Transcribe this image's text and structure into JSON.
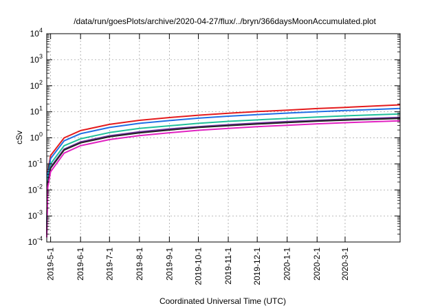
{
  "chart_data": {
    "type": "line",
    "title": "/data/run/goesPlots/archive/2020-04-27/flux/../bryn/366daysMoonAccumulated.plot",
    "xlabel": "Coordinated Universal Time (UTC)",
    "ylabel": "cSv",
    "yscale": "log",
    "ylim": [
      0.0001,
      10000
    ],
    "xlim": [
      "2019-04-27",
      "2020-04-27"
    ],
    "grid": true,
    "y_ticks": [
      {
        "base": "10",
        "exp": "-4",
        "value": 0.0001
      },
      {
        "base": "10",
        "exp": "-3",
        "value": 0.001
      },
      {
        "base": "10",
        "exp": "-2",
        "value": 0.01
      },
      {
        "base": "10",
        "exp": "-1",
        "value": 0.1
      },
      {
        "base": "10",
        "exp": "0",
        "value": 1
      },
      {
        "base": "10",
        "exp": "1",
        "value": 10
      },
      {
        "base": "10",
        "exp": "2",
        "value": 100
      },
      {
        "base": "10",
        "exp": "3",
        "value": 1000
      },
      {
        "base": "10",
        "exp": "4",
        "value": 10000
      }
    ],
    "x_ticks": [
      {
        "label": "2019-5-1",
        "date": "2019-05-01"
      },
      {
        "label": "2019-6-1",
        "date": "2019-06-01"
      },
      {
        "label": "2019-7-1",
        "date": "2019-07-01"
      },
      {
        "label": "2019-8-1",
        "date": "2019-08-01"
      },
      {
        "label": "2019-9-1",
        "date": "2019-09-01"
      },
      {
        "label": "2019-10-1",
        "date": "2019-10-01"
      },
      {
        "label": "2019-11-1",
        "date": "2019-11-01"
      },
      {
        "label": "2019-12-1",
        "date": "2019-12-01"
      },
      {
        "label": "2020-1-1",
        "date": "2020-01-01"
      },
      {
        "label": "2020-2-1",
        "date": "2020-02-01"
      },
      {
        "label": "2020-3-1",
        "date": "2020-03-01"
      }
    ],
    "series": [
      {
        "color": "#e41a1c",
        "values": [
          [
            "2019-04-27",
            0.0005
          ],
          [
            "2019-04-28",
            0.05
          ],
          [
            "2019-05-01",
            0.21
          ],
          [
            "2019-05-15",
            1.0
          ],
          [
            "2019-06-01",
            1.9
          ],
          [
            "2019-07-01",
            3.3
          ],
          [
            "2019-08-01",
            4.7
          ],
          [
            "2019-09-01",
            6.0
          ],
          [
            "2019-10-01",
            7.4
          ],
          [
            "2019-11-01",
            8.8
          ],
          [
            "2019-12-01",
            10.2
          ],
          [
            "2020-01-01",
            11.6
          ],
          [
            "2020-02-01",
            13.3
          ],
          [
            "2020-03-01",
            14.8
          ],
          [
            "2020-04-27",
            18.5
          ]
        ]
      },
      {
        "color": "#1f6fe5",
        "values": [
          [
            "2019-04-27",
            0.0004
          ],
          [
            "2019-04-28",
            0.04
          ],
          [
            "2019-05-01",
            0.16
          ],
          [
            "2019-05-15",
            0.77
          ],
          [
            "2019-06-01",
            1.45
          ],
          [
            "2019-07-01",
            2.5
          ],
          [
            "2019-08-01",
            3.6
          ],
          [
            "2019-09-01",
            4.6
          ],
          [
            "2019-10-01",
            5.7
          ],
          [
            "2019-11-01",
            6.8
          ],
          [
            "2019-12-01",
            7.8
          ],
          [
            "2020-01-01",
            8.9
          ],
          [
            "2020-02-01",
            10.1
          ],
          [
            "2020-03-01",
            11.2
          ],
          [
            "2020-04-27",
            13.5
          ]
        ]
      },
      {
        "color": "#1fbf9a",
        "values": [
          [
            "2019-04-27",
            0.0003
          ],
          [
            "2019-04-28",
            0.025
          ],
          [
            "2019-05-01",
            0.1
          ],
          [
            "2019-05-15",
            0.5
          ],
          [
            "2019-06-01",
            0.92
          ],
          [
            "2019-07-01",
            1.6
          ],
          [
            "2019-08-01",
            2.3
          ],
          [
            "2019-09-01",
            2.9
          ],
          [
            "2019-10-01",
            3.6
          ],
          [
            "2019-11-01",
            4.3
          ],
          [
            "2019-12-01",
            4.9
          ],
          [
            "2020-01-01",
            5.6
          ],
          [
            "2020-02-01",
            6.3
          ],
          [
            "2020-03-01",
            7.0
          ],
          [
            "2020-04-27",
            8.3
          ]
        ]
      },
      {
        "color": "#7030a0",
        "values": [
          [
            "2019-04-27",
            0.0002
          ],
          [
            "2019-04-28",
            0.018
          ],
          [
            "2019-05-01",
            0.075
          ],
          [
            "2019-05-15",
            0.37
          ],
          [
            "2019-06-01",
            0.7
          ],
          [
            "2019-07-01",
            1.2
          ],
          [
            "2019-08-01",
            1.7
          ],
          [
            "2019-09-01",
            2.2
          ],
          [
            "2019-10-01",
            2.7
          ],
          [
            "2019-11-01",
            3.2
          ],
          [
            "2019-12-01",
            3.7
          ],
          [
            "2020-01-01",
            4.2
          ],
          [
            "2020-02-01",
            4.7
          ],
          [
            "2020-03-01",
            5.2
          ],
          [
            "2020-04-27",
            6.1
          ]
        ]
      },
      {
        "color": "#222222",
        "values": [
          [
            "2019-04-27",
            0.0002
          ],
          [
            "2019-04-28",
            0.016
          ],
          [
            "2019-05-01",
            0.068
          ],
          [
            "2019-05-15",
            0.34
          ],
          [
            "2019-06-01",
            0.64
          ],
          [
            "2019-07-01",
            1.1
          ],
          [
            "2019-08-01",
            1.55
          ],
          [
            "2019-09-01",
            2.0
          ],
          [
            "2019-10-01",
            2.5
          ],
          [
            "2019-11-01",
            2.95
          ],
          [
            "2019-12-01",
            3.4
          ],
          [
            "2020-01-01",
            3.85
          ],
          [
            "2020-02-01",
            4.35
          ],
          [
            "2020-03-01",
            4.8
          ],
          [
            "2020-04-27",
            5.6
          ]
        ]
      },
      {
        "color": "#e020c0",
        "values": [
          [
            "2019-04-27",
            0.00015
          ],
          [
            "2019-04-28",
            0.012
          ],
          [
            "2019-05-01",
            0.05
          ],
          [
            "2019-05-15",
            0.26
          ],
          [
            "2019-06-01",
            0.5
          ],
          [
            "2019-07-01",
            0.86
          ],
          [
            "2019-08-01",
            1.22
          ],
          [
            "2019-09-01",
            1.57
          ],
          [
            "2019-10-01",
            1.95
          ],
          [
            "2019-11-01",
            2.3
          ],
          [
            "2019-12-01",
            2.7
          ],
          [
            "2020-01-01",
            3.05
          ],
          [
            "2020-02-01",
            3.45
          ],
          [
            "2020-03-01",
            3.8
          ],
          [
            "2020-04-27",
            4.5
          ]
        ]
      }
    ]
  }
}
